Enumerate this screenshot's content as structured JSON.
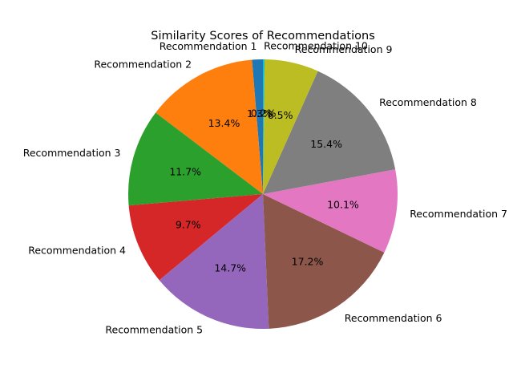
{
  "chart_data": {
    "type": "pie",
    "title": "Similarity Scores of Recommendations",
    "categories": [
      "Recommendation 1",
      "Recommendation 2",
      "Recommendation 3",
      "Recommendation 4",
      "Recommendation 5",
      "Recommendation 6",
      "Recommendation 7",
      "Recommendation 8",
      "Recommendation 9",
      "Recommendation 10"
    ],
    "values": [
      1.3,
      13.4,
      11.7,
      9.7,
      14.7,
      17.2,
      10.1,
      15.4,
      6.5,
      0.2
    ],
    "percent_labels": [
      "1.3%",
      "13.4%",
      "11.7%",
      "9.7%",
      "14.7%",
      "17.2%",
      "10.1%",
      "15.4%",
      "6.5%",
      "0.2%"
    ],
    "colors": [
      "#1f77b4",
      "#ff7f0e",
      "#2ca02c",
      "#d62728",
      "#9467bd",
      "#8c564b",
      "#e377c2",
      "#7f7f7f",
      "#bcbd22",
      "#17becf"
    ],
    "start_angle_deg": 90,
    "direction": "counterclockwise"
  }
}
